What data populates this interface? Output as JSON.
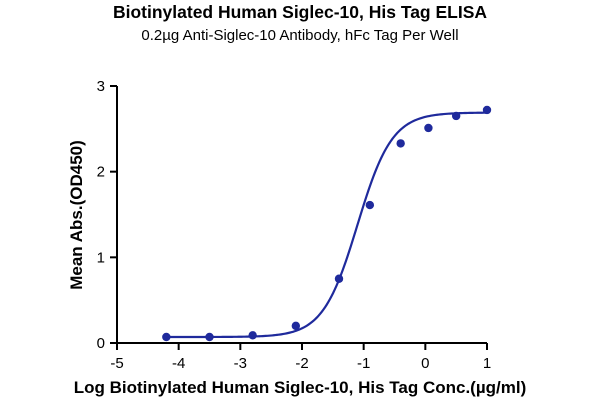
{
  "chart_data": {
    "type": "scatter",
    "title": "Biotinylated Human Siglec-10, His Tag ELISA",
    "subtitle": "0.2µg Anti-Siglec-10 Antibody, hFc Tag Per Well",
    "xlabel": "Log Biotinylated Human Siglec-10, His Tag Conc.(µg/ml)",
    "ylabel": "Mean Abs.(OD450)",
    "xlim": [
      -5,
      1
    ],
    "ylim": [
      0,
      3
    ],
    "xticks": [
      -5,
      -4,
      -3,
      -2,
      -1,
      0,
      1
    ],
    "yticks": [
      0,
      1,
      2,
      3
    ],
    "grid": false,
    "color": "#1f2a9c",
    "series": [
      {
        "x": [
          -4.2,
          -3.5,
          -2.8,
          -2.1,
          -1.4,
          -0.9,
          -0.4,
          0.05,
          0.5,
          1.0
        ],
        "y": [
          0.07,
          0.07,
          0.09,
          0.2,
          0.75,
          1.61,
          2.33,
          2.51,
          2.65,
          2.72
        ],
        "fit": {
          "bottom": 0.07,
          "top": 2.69,
          "logEC50": -1.1,
          "hill": 1.55
        }
      }
    ]
  }
}
